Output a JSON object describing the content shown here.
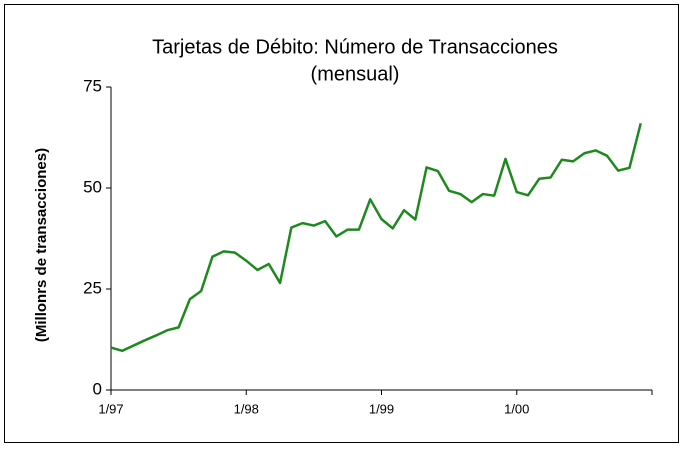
{
  "chart_data": {
    "type": "line",
    "title": "Tarjetas de Débito: Número de Transacciones",
    "subtitle": "(mensual)",
    "y_label": "(Millonrs de transacciones)",
    "categories": [
      "1/97",
      null,
      null,
      null,
      null,
      null,
      null,
      null,
      null,
      null,
      null,
      null,
      "1/98",
      null,
      null,
      null,
      null,
      null,
      null,
      null,
      null,
      null,
      null,
      null,
      "1/99",
      null,
      null,
      null,
      null,
      null,
      null,
      null,
      null,
      null,
      null,
      null,
      "1/00",
      null,
      null,
      null,
      null,
      null,
      null,
      null,
      null,
      null,
      null,
      null
    ],
    "series": [
      {
        "name": "Transacciones",
        "color": "#1e8a1e",
        "values": [
          10.5,
          9.7,
          11,
          12.3,
          13.5,
          14.8,
          15.5,
          22.5,
          24.5,
          33,
          34.3,
          34,
          32,
          29.7,
          31.2,
          26.5,
          40.2,
          41.3,
          40.7,
          41.8,
          38,
          39.7,
          39.7,
          47.2,
          42.3,
          40,
          44.5,
          42.2,
          55.1,
          54.2,
          49.3,
          48.5,
          46.5,
          48.5,
          48.1,
          57.2,
          49,
          48.2,
          52.3,
          52.6,
          57,
          56.6,
          58.6,
          59.3,
          58,
          54.3,
          55,
          66
        ]
      }
    ],
    "ylim": [
      0,
      75
    ],
    "yticks": [
      0,
      25,
      50,
      75
    ],
    "grid": false
  }
}
